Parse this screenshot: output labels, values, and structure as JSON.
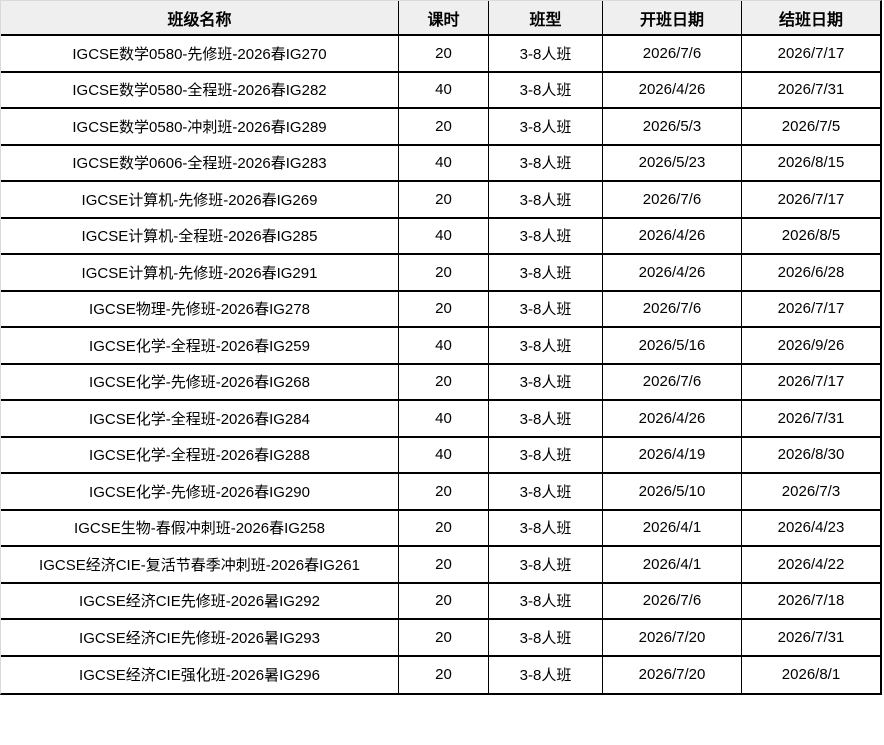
{
  "table": {
    "columns": [
      "班级名称",
      "课时",
      "班型",
      "开班日期",
      "结班日期"
    ],
    "rows": [
      [
        "IGCSE数学0580-先修班-2026春IG270",
        "20",
        "3-8人班",
        "2026/7/6",
        "2026/7/17"
      ],
      [
        "IGCSE数学0580-全程班-2026春IG282",
        "40",
        "3-8人班",
        "2026/4/26",
        "2026/7/31"
      ],
      [
        "IGCSE数学0580-冲刺班-2026春IG289",
        "20",
        "3-8人班",
        "2026/5/3",
        "2026/7/5"
      ],
      [
        "IGCSE数学0606-全程班-2026春IG283",
        "40",
        "3-8人班",
        "2026/5/23",
        "2026/8/15"
      ],
      [
        "IGCSE计算机-先修班-2026春IG269",
        "20",
        "3-8人班",
        "2026/7/6",
        "2026/7/17"
      ],
      [
        "IGCSE计算机-全程班-2026春IG285",
        "40",
        "3-8人班",
        "2026/4/26",
        "2026/8/5"
      ],
      [
        "IGCSE计算机-先修班-2026春IG291",
        "20",
        "3-8人班",
        "2026/4/26",
        "2026/6/28"
      ],
      [
        "IGCSE物理-先修班-2026春IG278",
        "20",
        "3-8人班",
        "2026/7/6",
        "2026/7/17"
      ],
      [
        "IGCSE化学-全程班-2026春IG259",
        "40",
        "3-8人班",
        "2026/5/16",
        "2026/9/26"
      ],
      [
        "IGCSE化学-先修班-2026春IG268",
        "20",
        "3-8人班",
        "2026/7/6",
        "2026/7/17"
      ],
      [
        "IGCSE化学-全程班-2026春IG284",
        "40",
        "3-8人班",
        "2026/4/26",
        "2026/7/31"
      ],
      [
        "IGCSE化学-全程班-2026春IG288",
        "40",
        "3-8人班",
        "2026/4/19",
        "2026/8/30"
      ],
      [
        "IGCSE化学-先修班-2026春IG290",
        "20",
        "3-8人班",
        "2026/5/10",
        "2026/7/3"
      ],
      [
        "IGCSE生物-春假冲刺班-2026春IG258",
        "20",
        "3-8人班",
        "2026/4/1",
        "2026/4/23"
      ],
      [
        "IGCSE经济CIE-复活节春季冲刺班-2026春IG261",
        "20",
        "3-8人班",
        "2026/4/1",
        "2026/4/22"
      ],
      [
        "IGCSE经济CIE先修班-2026暑IG292",
        "20",
        "3-8人班",
        "2026/7/6",
        "2026/7/18"
      ],
      [
        "IGCSE经济CIE先修班-2026暑IG293",
        "20",
        "3-8人班",
        "2026/7/20",
        "2026/7/31"
      ],
      [
        "IGCSE经济CIE强化班-2026暑IG296",
        "20",
        "3-8人班",
        "2026/7/20",
        "2026/8/1"
      ]
    ],
    "cell_names": [
      "cell-class-name",
      "cell-hours",
      "cell-class-type",
      "cell-start-date",
      "cell-end-date"
    ]
  },
  "colors": {
    "header_bg": "#efefef",
    "grid_border": "#000000",
    "outer_edge": "#d9d9d9",
    "row_bg": "#ffffff",
    "text": "#000000"
  }
}
